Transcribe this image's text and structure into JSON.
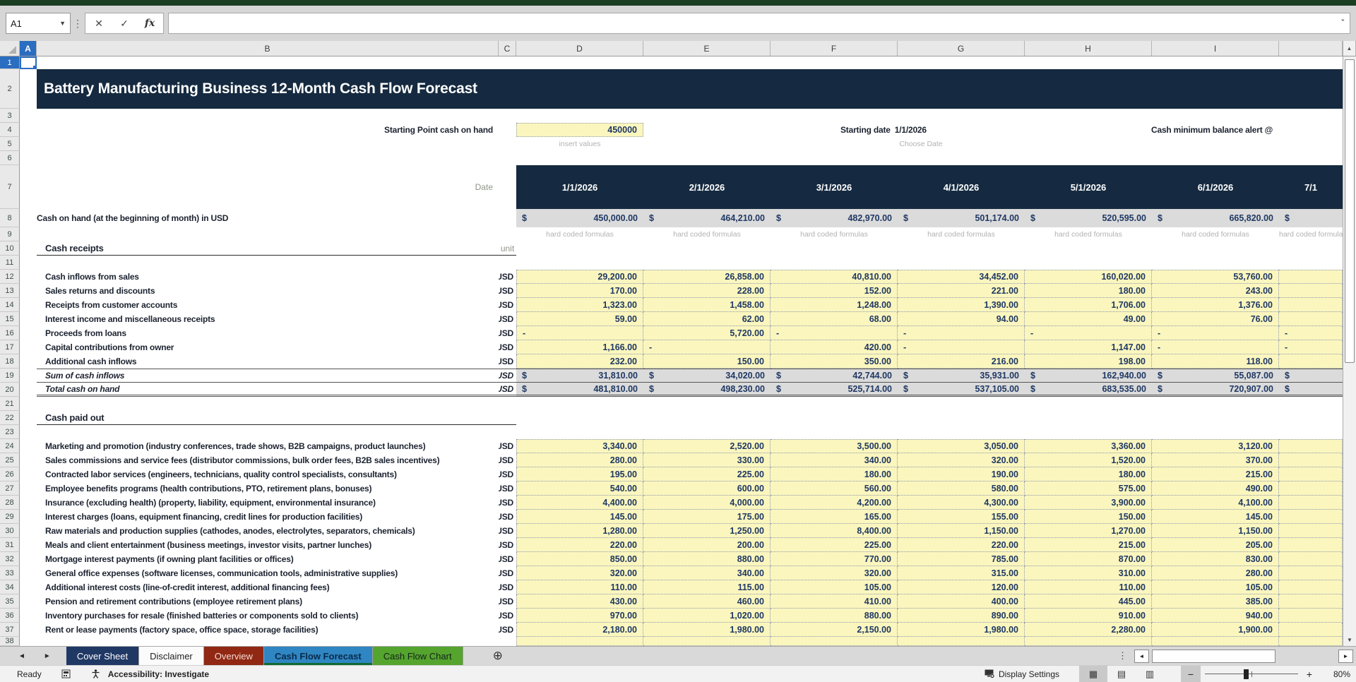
{
  "app": {
    "name_box": "A1",
    "formula_bar_value": "",
    "column_headers": [
      "A",
      "B",
      "C",
      "D",
      "E",
      "F",
      "G",
      "H",
      "I"
    ],
    "sheet_tabs": [
      {
        "label": "Cover Sheet",
        "bg": "#203864",
        "fg": "#ffffff",
        "active": false
      },
      {
        "label": "Disclaimer",
        "bg": "#fbfbfb",
        "fg": "#222222",
        "active": false
      },
      {
        "label": "Overview",
        "bg": "#902813",
        "fg": "#f4ddd4",
        "active": false
      },
      {
        "label": "Cash Flow Forecast",
        "bg": "#2f86c3",
        "fg": "#0a2a4a",
        "active": true
      },
      {
        "label": "Cash Flow Chart",
        "bg": "#55a42d",
        "fg": "#15231c",
        "active": false
      }
    ],
    "status": {
      "ready": "Ready",
      "accessibility": "Accessibility: Investigate",
      "display_settings": "Display Settings",
      "zoom_level": "80%"
    }
  },
  "sheet": {
    "title": "Battery Manufacturing Business 12-Month Cash Flow Forecast",
    "currency_symbol": "$",
    "config": {
      "starting_point_label": "Starting Point cash on hand",
      "starting_point_value": "450000",
      "insert_values_hint": "insert values",
      "starting_date_label": "Starting date",
      "starting_date_value": "1/1/2026",
      "choose_date_hint": "Choose Date",
      "alert_label": "Cash minimum balance alert @"
    },
    "date_label": "Date",
    "months": [
      "1/1/2026",
      "2/1/2026",
      "3/1/2026",
      "4/1/2026",
      "5/1/2026",
      "6/1/2026",
      "7/1"
    ],
    "hard_coded_hint": "hard coded formulas",
    "unit_header": "unit",
    "unit": "USD",
    "cash_on_hand": {
      "label": "Cash on hand (at the beginning of month) in USD",
      "values": [
        "450,000.00",
        "464,210.00",
        "482,970.00",
        "501,174.00",
        "520,595.00",
        "665,820.00"
      ]
    },
    "receipts": {
      "heading": "Cash receipts",
      "rows": [
        {
          "label": "Cash inflows from sales",
          "values": [
            "29,200.00",
            "26,858.00",
            "40,810.00",
            "34,452.00",
            "160,020.00",
            "53,760.00",
            ""
          ]
        },
        {
          "label": "Sales returns and discounts",
          "values": [
            "170.00",
            "228.00",
            "152.00",
            "221.00",
            "180.00",
            "243.00",
            ""
          ]
        },
        {
          "label": "Receipts from customer accounts",
          "values": [
            "1,323.00",
            "1,458.00",
            "1,248.00",
            "1,390.00",
            "1,706.00",
            "1,376.00",
            ""
          ]
        },
        {
          "label": "Interest income and miscellaneous receipts",
          "values": [
            "59.00",
            "62.00",
            "68.00",
            "94.00",
            "49.00",
            "76.00",
            ""
          ]
        },
        {
          "label": "Proceeds from loans",
          "values": [
            "-",
            "5,720.00",
            "-",
            "-",
            "-",
            "-",
            "-"
          ]
        },
        {
          "label": "Capital contributions from owner",
          "values": [
            "1,166.00",
            "-",
            "420.00",
            "-",
            "1,147.00",
            "-",
            "-"
          ]
        },
        {
          "label": "Additional cash inflows",
          "values": [
            "232.00",
            "150.00",
            "350.00",
            "216.00",
            "198.00",
            "118.00",
            ""
          ]
        }
      ],
      "totals": [
        {
          "label": "Sum of cash inflows",
          "values": [
            "31,810.00",
            "34,020.00",
            "42,744.00",
            "35,931.00",
            "162,940.00",
            "55,087.00"
          ]
        },
        {
          "label": "Total cash on hand",
          "values": [
            "481,810.00",
            "498,230.00",
            "525,714.00",
            "537,105.00",
            "683,535.00",
            "720,907.00"
          ]
        }
      ]
    },
    "paid_out": {
      "heading": "Cash paid out",
      "rows": [
        {
          "label": "Marketing and promotion (industry conferences, trade shows, B2B campaigns, product launches)",
          "values": [
            "3,340.00",
            "2,520.00",
            "3,500.00",
            "3,050.00",
            "3,360.00",
            "3,120.00",
            ""
          ]
        },
        {
          "label": "Sales commissions and service fees (distributor commissions, bulk order fees, B2B sales incentives)",
          "values": [
            "280.00",
            "330.00",
            "340.00",
            "320.00",
            "1,520.00",
            "370.00",
            ""
          ]
        },
        {
          "label": "Contracted labor services (engineers, technicians, quality control specialists, consultants)",
          "values": [
            "195.00",
            "225.00",
            "180.00",
            "190.00",
            "180.00",
            "215.00",
            ""
          ]
        },
        {
          "label": "Employee benefits programs (health contributions, PTO, retirement plans, bonuses)",
          "values": [
            "540.00",
            "600.00",
            "560.00",
            "580.00",
            "575.00",
            "490.00",
            ""
          ]
        },
        {
          "label": "Insurance (excluding health) (property, liability, equipment, environmental insurance)",
          "values": [
            "4,400.00",
            "4,000.00",
            "4,200.00",
            "4,300.00",
            "3,900.00",
            "4,100.00",
            ""
          ]
        },
        {
          "label": "Interest charges (loans, equipment financing, credit lines for production facilities)",
          "values": [
            "145.00",
            "175.00",
            "165.00",
            "155.00",
            "150.00",
            "145.00",
            ""
          ]
        },
        {
          "label": "Raw materials and production supplies (cathodes, anodes, electrolytes, separators, chemicals)",
          "values": [
            "1,280.00",
            "1,250.00",
            "8,400.00",
            "1,150.00",
            "1,270.00",
            "1,150.00",
            ""
          ]
        },
        {
          "label": "Meals and client entertainment (business meetings, investor visits, partner lunches)",
          "values": [
            "220.00",
            "200.00",
            "225.00",
            "220.00",
            "215.00",
            "205.00",
            ""
          ]
        },
        {
          "label": "Mortgage interest payments (if owning plant facilities or offices)",
          "values": [
            "850.00",
            "880.00",
            "770.00",
            "785.00",
            "870.00",
            "830.00",
            ""
          ]
        },
        {
          "label": "General office expenses (software licenses, communication tools, administrative supplies)",
          "values": [
            "320.00",
            "340.00",
            "320.00",
            "315.00",
            "310.00",
            "280.00",
            ""
          ]
        },
        {
          "label": "Additional interest costs (line-of-credit interest, additional financing fees)",
          "values": [
            "110.00",
            "115.00",
            "105.00",
            "120.00",
            "110.00",
            "105.00",
            ""
          ]
        },
        {
          "label": "Pension and retirement contributions (employee retirement plans)",
          "values": [
            "430.00",
            "460.00",
            "410.00",
            "400.00",
            "445.00",
            "385.00",
            ""
          ]
        },
        {
          "label": "Inventory purchases for resale (finished batteries or components sold to clients)",
          "values": [
            "970.00",
            "1,020.00",
            "880.00",
            "890.00",
            "910.00",
            "940.00",
            ""
          ]
        },
        {
          "label": "Rent or lease payments (factory space, office space, storage facilities)",
          "values": [
            "2,180.00",
            "1,980.00",
            "2,150.00",
            "1,980.00",
            "2,280.00",
            "1,900.00",
            ""
          ]
        }
      ]
    }
  }
}
